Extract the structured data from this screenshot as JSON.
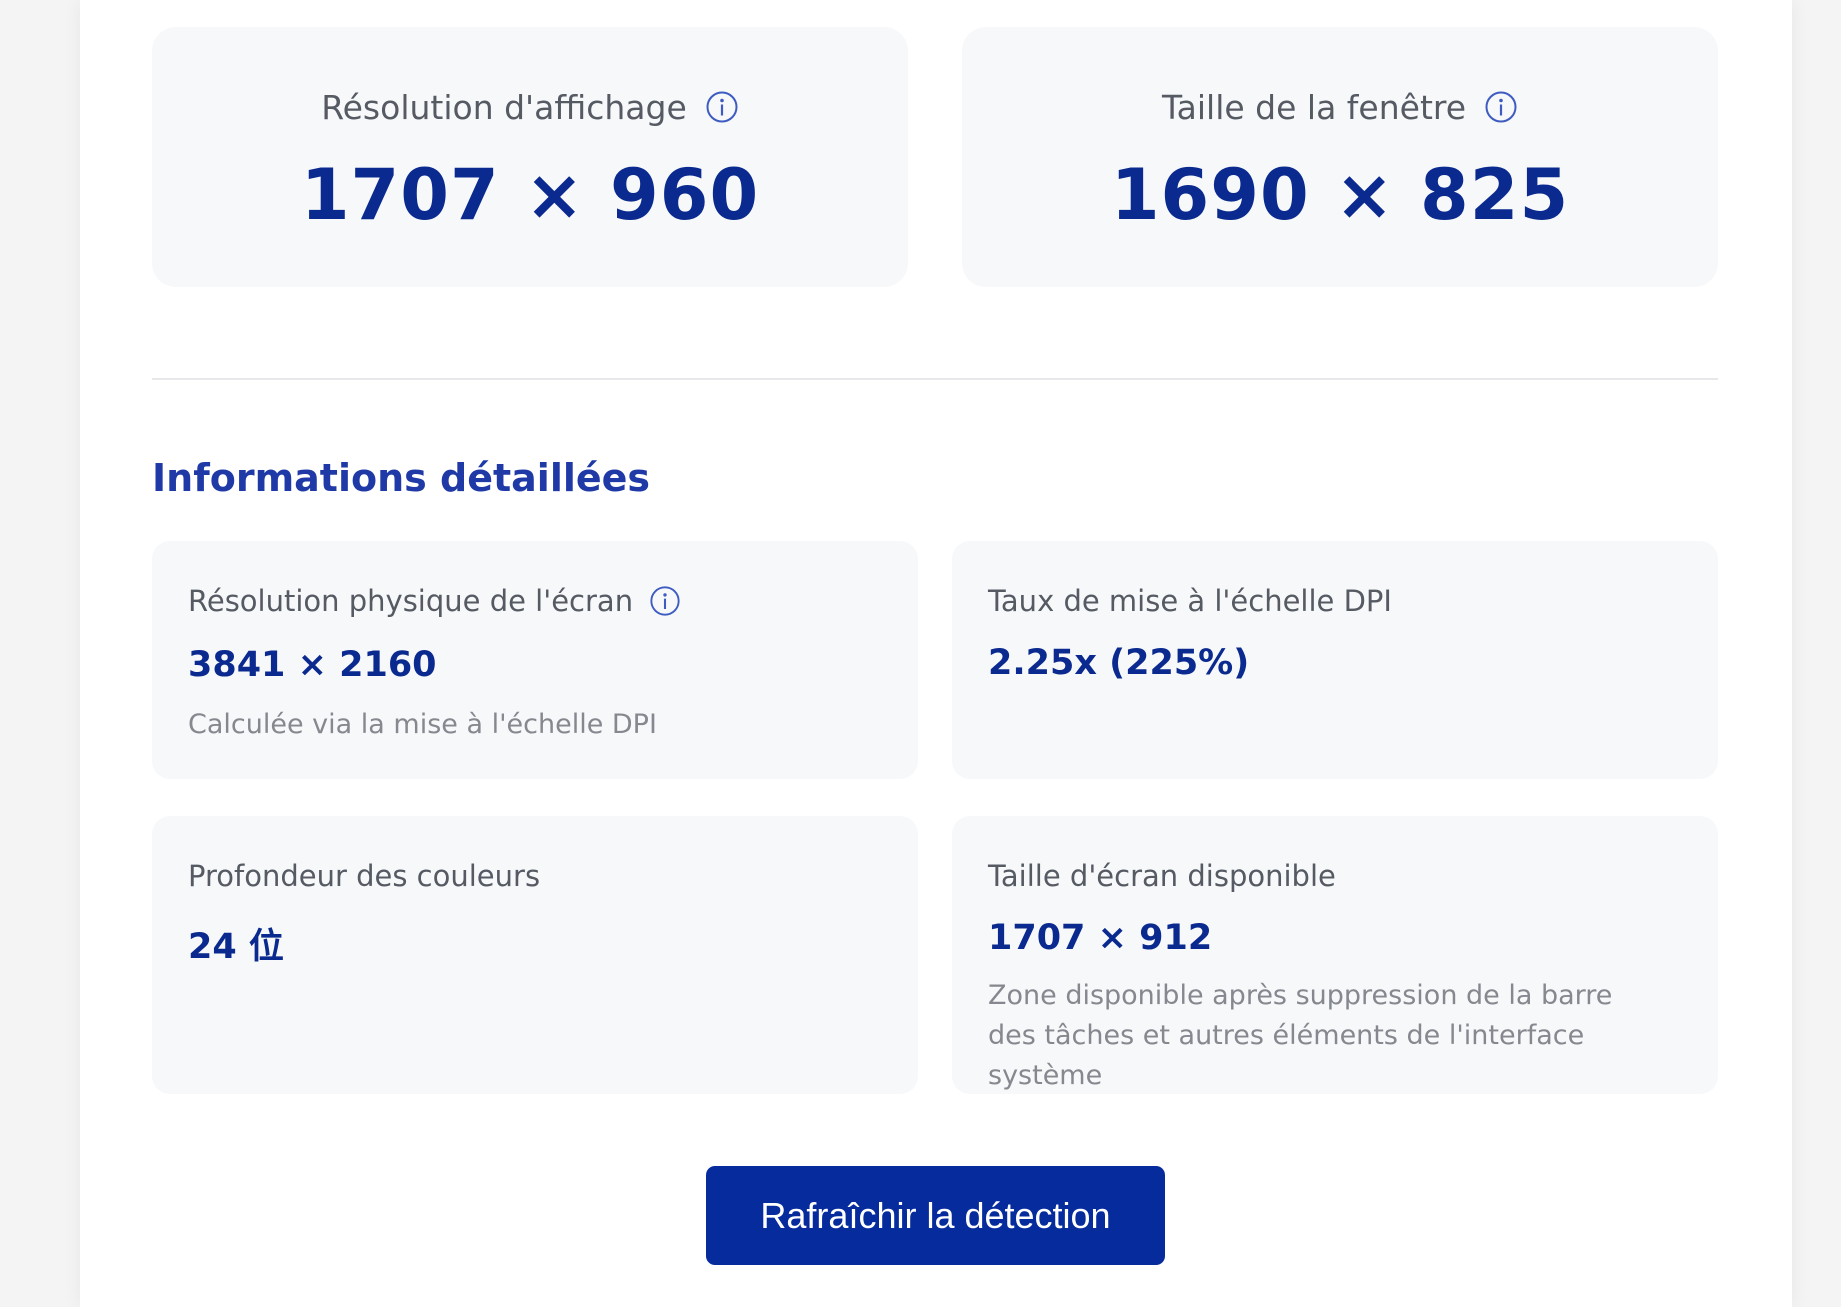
{
  "hero": {
    "display_resolution": {
      "label": "Résolution d'affichage",
      "value": "1707 × 960",
      "icon": "info-icon"
    },
    "window_size": {
      "label": "Taille de la fenêtre",
      "value": "1690 × 825",
      "icon": "info-icon"
    }
  },
  "details": {
    "title": "Informations détaillées",
    "physical_resolution": {
      "label": "Résolution physique de l'écran",
      "value": "3841 × 2160",
      "note": "Calculée via la mise à l'échelle DPI",
      "icon": "info-icon"
    },
    "dpi_scaling": {
      "label": "Taux de mise à l'échelle DPI",
      "value": "2.25x (225%)"
    },
    "color_depth": {
      "label": "Profondeur des couleurs",
      "value": "24 位"
    },
    "available_size": {
      "label": "Taille d'écran disponible",
      "value": "1707 × 912",
      "note": "Zone disponible après suppression de la barre des tâches et autres éléments de l'interface système"
    }
  },
  "actions": {
    "refresh_label": "Rafraîchir la détection"
  },
  "colors": {
    "accent": "#0a2a8f",
    "button": "#062b9c",
    "card_bg": "#f7f8fa",
    "page_bg": "#f4f4f5"
  }
}
